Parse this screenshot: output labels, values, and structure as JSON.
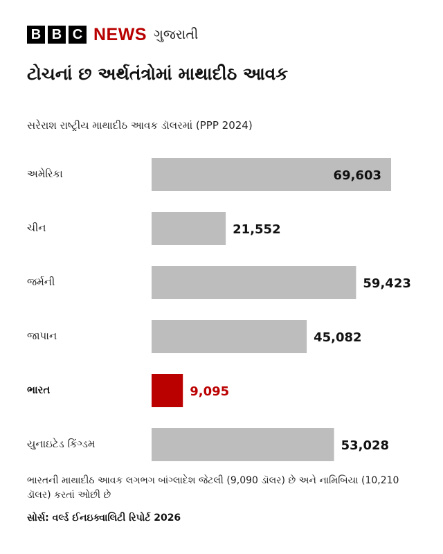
{
  "brand": {
    "bbc_letters": [
      "B",
      "B",
      "C"
    ],
    "news": "NEWS",
    "language": "ગુજરાતી"
  },
  "chart_data": {
    "type": "bar",
    "orientation": "horizontal",
    "title": "ટોચનાં છ અર્થતંત્રોમાં માથાદીઠ આવક",
    "subtitle": "સરેરાશ રાષ્ટ્રીય માથાદીઠ આવક ડૉલરમાં (PPP 2024)",
    "categories": [
      "અમેરિકા",
      "ચીન",
      "જર્મની",
      "જાપાન",
      "ભારત",
      "યુનાઇટેડ કિંગ્ડમ"
    ],
    "values": [
      69603,
      21552,
      59423,
      45082,
      9095,
      53028
    ],
    "data_labels": [
      "69,603",
      "21,552",
      "59,423",
      "45,082",
      "9,095",
      "53,028"
    ],
    "highlight_index": 4,
    "xlim": [
      0,
      70000
    ],
    "grid": false,
    "colors": {
      "bar": "#bdbdbd",
      "highlight": "#bb0000",
      "label": "#111111"
    }
  },
  "note": "ભારતની માથાદીઠ આવક લગભગ બાંગ્લાદેશ જેટલી (9,090 ડૉલર) છે અને નામિબિયા (10,210 ડૉલર) કરતાં ઓછી છે",
  "source": "સોર્સ: વર્લ્ડ ઈનઇક્વાલિટી રિપોર્ટ 2026"
}
